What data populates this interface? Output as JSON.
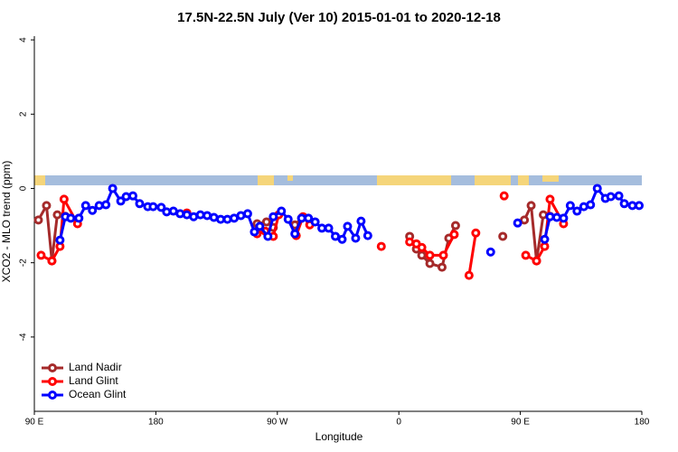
{
  "chart_data": {
    "type": "line",
    "title": "17.5N-22.5N July (Ver 10)   2015-01-01 to 2020-12-18",
    "x_label": "Longitude",
    "y_label": "XCO2 - MLO trend (ppm)",
    "xlim": [
      90,
      540
    ],
    "ylim": [
      -6,
      4.1
    ],
    "xticks": [
      {
        "value": 90,
        "label": "90 E"
      },
      {
        "value": 180,
        "label": "180"
      },
      {
        "value": 270,
        "label": "90 W"
      },
      {
        "value": 360,
        "label": "0"
      },
      {
        "value": 450,
        "label": "90 E"
      },
      {
        "value": 540,
        "label": "180"
      }
    ],
    "yticks": [
      -4,
      -2,
      0,
      2,
      4
    ],
    "legend": "bottom-left",
    "series": [
      {
        "name": "Land Nadir",
        "color": "#a52a2a",
        "x": [
          93,
          99,
          103,
          107,
          113,
          null,
          255,
          262,
          267,
          null,
          283,
          288,
          null,
          368,
          373,
          377,
          383,
          392,
          397,
          402,
          null,
          437,
          null,
          453,
          458,
          462,
          467,
          472
        ],
        "values": [
          -0.85,
          -0.46,
          -1.95,
          -0.71,
          -0.75,
          null,
          -0.95,
          -0.9,
          -1.05,
          null,
          -0.98,
          -0.8,
          null,
          -1.29,
          -1.63,
          -1.8,
          -2.02,
          -2.12,
          -1.34,
          -1.0,
          null,
          -1.29,
          null,
          -0.85,
          -0.46,
          -1.95,
          -0.71,
          -0.75
        ]
      },
      {
        "name": "Land Glint",
        "color": "#ff0000",
        "x": [
          95,
          103,
          109,
          112,
          122,
          null,
          203,
          null,
          255,
          261,
          267,
          271,
          null,
          284,
          289,
          294,
          null,
          347,
          null,
          368,
          373,
          377,
          383,
          393,
          401,
          null,
          412,
          417,
          null,
          438,
          null,
          454,
          462,
          468,
          472,
          482
        ],
        "values": [
          -1.8,
          -1.95,
          -1.56,
          -0.29,
          -0.95,
          null,
          -0.66,
          null,
          -1.22,
          -1.15,
          -1.29,
          -0.71,
          null,
          -1.27,
          -0.76,
          -0.98,
          null,
          -1.56,
          null,
          -1.44,
          -1.49,
          -1.59,
          -1.8,
          -1.8,
          -1.24,
          null,
          -2.34,
          -1.2,
          null,
          -0.2,
          null,
          -1.8,
          -1.95,
          -1.56,
          -0.29,
          -0.95
        ]
      },
      {
        "name": "Ocean Glint",
        "color": "#0000ff",
        "x": [
          109,
          113,
          117,
          123,
          128,
          133,
          138,
          143,
          148,
          154,
          158,
          163,
          168,
          174,
          178,
          184,
          188,
          193,
          198,
          203,
          208,
          213,
          218,
          223,
          228,
          233,
          238,
          243,
          248,
          253,
          257,
          263,
          267,
          273,
          278,
          283,
          288,
          293,
          298,
          303,
          308,
          313,
          318,
          322,
          328,
          332,
          337,
          null,
          428,
          null,
          448,
          null,
          468,
          472,
          477,
          482,
          487,
          492,
          497,
          502,
          507,
          513,
          517,
          523,
          527,
          533,
          538
        ],
        "values": [
          -1.39,
          -0.76,
          -0.8,
          -0.8,
          -0.46,
          -0.59,
          -0.46,
          -0.44,
          0.0,
          -0.34,
          -0.22,
          -0.2,
          -0.41,
          -0.49,
          -0.49,
          -0.51,
          -0.63,
          -0.61,
          -0.68,
          -0.71,
          -0.76,
          -0.71,
          -0.73,
          -0.78,
          -0.83,
          -0.83,
          -0.8,
          -0.73,
          -0.68,
          -1.17,
          -1.02,
          -1.29,
          -0.76,
          -0.61,
          -0.83,
          -1.22,
          -0.8,
          -0.8,
          -0.9,
          -1.07,
          -1.07,
          -1.29,
          -1.37,
          -1.02,
          -1.34,
          -0.88,
          -1.27,
          null,
          -1.71,
          null,
          -0.93,
          null,
          -1.37,
          -0.76,
          -0.78,
          -0.8,
          -0.46,
          -0.61,
          -0.49,
          -0.44,
          0.0,
          -0.27,
          -0.22,
          -0.2,
          -0.41,
          -0.46,
          -0.46
        ]
      }
    ]
  }
}
